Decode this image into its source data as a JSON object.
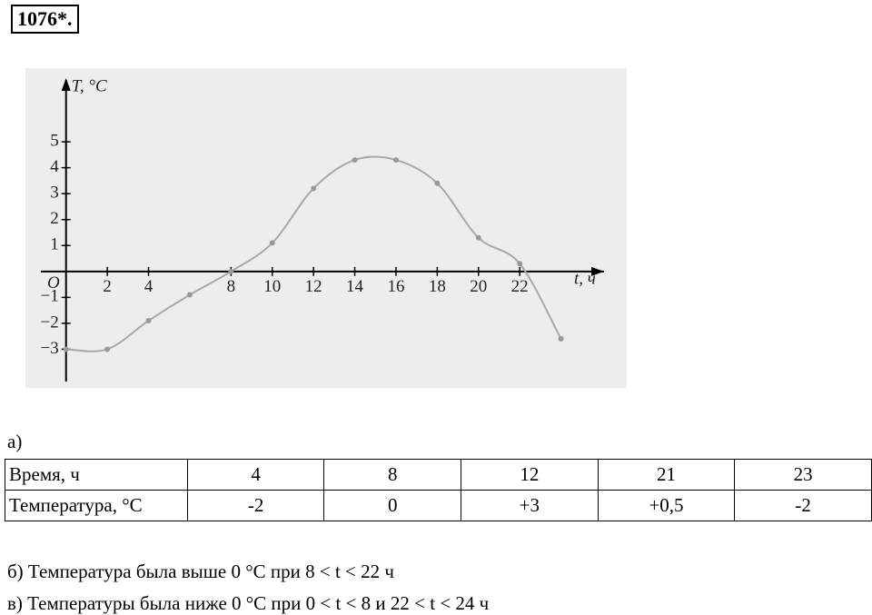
{
  "problem": "1076*.",
  "chart_data": {
    "type": "line",
    "y_label": "T, °C",
    "x_label": "t, ч",
    "origin_label": "O",
    "x": [
      0,
      2,
      4,
      6,
      8,
      10,
      12,
      14,
      16,
      18,
      20,
      22,
      24
    ],
    "values": [
      -3,
      -3,
      -1.9,
      -0.9,
      0,
      1.1,
      3.2,
      4.3,
      4.3,
      3.4,
      1.3,
      0.3,
      -2.6
    ],
    "color": "#a8a8a8",
    "xlim": [
      -1,
      26
    ],
    "ylim": [
      -4,
      7
    ],
    "xticks": [
      2,
      4,
      8,
      10,
      12,
      14,
      16,
      18,
      20,
      22
    ],
    "yticks": [
      {
        "value": -3,
        "label": "−3"
      },
      {
        "value": -2,
        "label": "−2"
      },
      {
        "value": -1,
        "label": "−1"
      },
      1,
      2,
      3,
      4,
      5
    ]
  },
  "part_a": "а)",
  "table": {
    "rows": [
      [
        "Время, ч",
        "4",
        "8",
        "12",
        "21",
        "23"
      ],
      [
        "Температура, °C",
        "-2",
        "0",
        "+3",
        "+0,5",
        "-2"
      ]
    ]
  },
  "answers": [
    "б) Температура была выше 0 °C при 8 < t < 22 ч",
    "в) Температуры была ниже 0 °C при 0 < t < 8 и 22 < t < 24 ч"
  ]
}
